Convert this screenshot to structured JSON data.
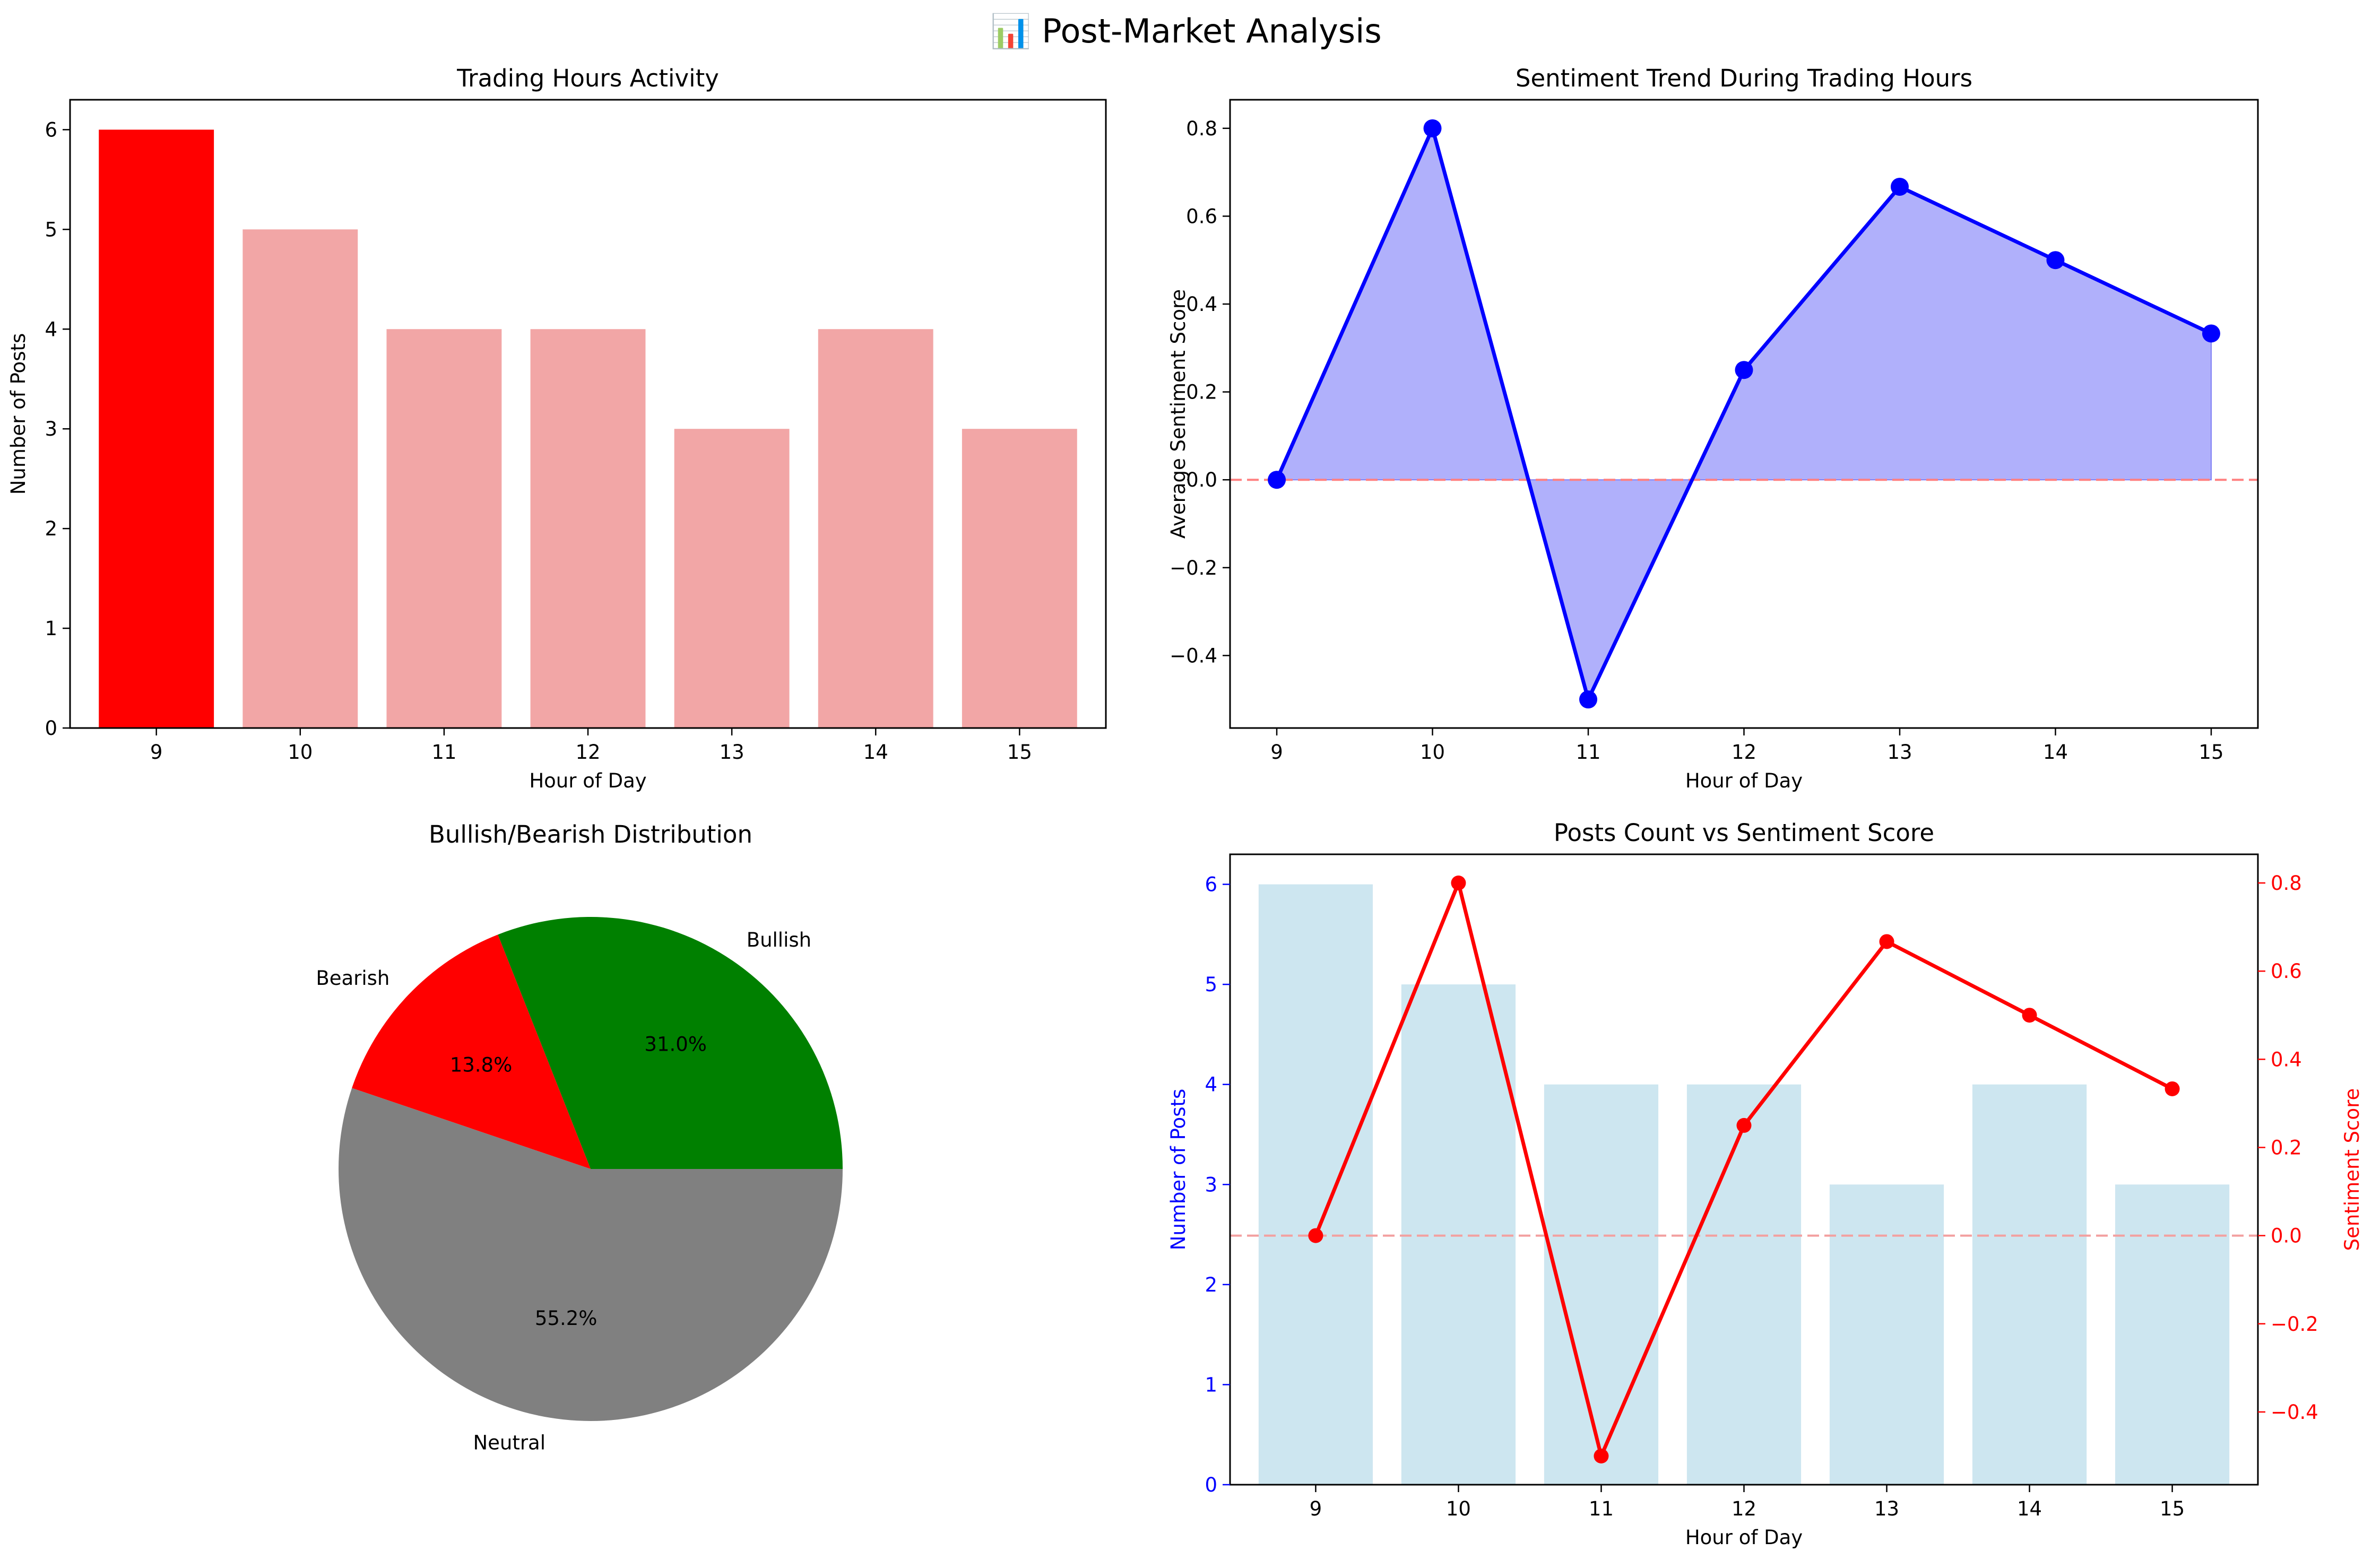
{
  "suptitle": "📊 Post-Market Analysis",
  "chart_data": [
    {
      "type": "bar",
      "title": "Trading Hours Activity",
      "xlabel": "Hour of Day",
      "ylabel": "Number of Posts",
      "categories": [
        "9",
        "10",
        "11",
        "12",
        "13",
        "14",
        "15"
      ],
      "values": [
        6,
        5,
        4,
        4,
        3,
        4,
        3
      ],
      "highlight_color": "#ff0000",
      "bar_color": "#f2a6a6",
      "ylim": [
        0,
        6.3
      ],
      "yticks": [
        0,
        1,
        2,
        3,
        4,
        5,
        6
      ]
    },
    {
      "type": "line",
      "title": "Sentiment Trend During Trading Hours",
      "xlabel": "Hour of Day",
      "ylabel": "Average Sentiment Score",
      "x": [
        9,
        10,
        11,
        12,
        13,
        14,
        15
      ],
      "values": [
        0.0,
        0.8,
        -0.5,
        0.25,
        0.667,
        0.5,
        0.333
      ],
      "line_color": "#0000ff",
      "fill_color": "#b0b0fb",
      "reference_line": 0,
      "reference_color": "#ff8080",
      "ylim": [
        -0.565,
        0.865
      ],
      "yticks": [
        -0.4,
        -0.2,
        0.0,
        0.2,
        0.4,
        0.6,
        0.8
      ],
      "ytick_labels": [
        "−0.4",
        "−0.2",
        "0.0",
        "0.2",
        "0.4",
        "0.6",
        "0.8"
      ]
    },
    {
      "type": "pie",
      "title": "Bullish/Bearish Distribution",
      "labels": [
        "Bullish",
        "Bearish",
        "Neutral"
      ],
      "values": [
        31.0,
        13.8,
        55.2
      ],
      "pct_labels": [
        "31.0%",
        "13.8%",
        "55.2%"
      ],
      "colors": [
        "#008000",
        "#ff0000",
        "#808080"
      ]
    },
    {
      "type": "bar+line",
      "title": "Posts Count vs Sentiment Score",
      "xlabel": "Hour of Day",
      "ylabel_left": "Number of Posts",
      "ylabel_right": "Sentiment Score",
      "categories": [
        "9",
        "10",
        "11",
        "12",
        "13",
        "14",
        "15"
      ],
      "bar_values": [
        6,
        5,
        4,
        4,
        3,
        4,
        3
      ],
      "line_values": [
        0.0,
        0.8,
        -0.5,
        0.25,
        0.667,
        0.5,
        0.333
      ],
      "bar_color": "#cde6f0",
      "line_color": "#ff0000",
      "left_axis_color": "#0000ff",
      "right_axis_color": "#ff0000",
      "reference_line": 0,
      "ylim_left": [
        0,
        6.3
      ],
      "yticks_left": [
        0,
        1,
        2,
        3,
        4,
        5,
        6
      ],
      "ylim_right": [
        -0.565,
        0.865
      ],
      "yticks_right": [
        -0.4,
        -0.2,
        0.0,
        0.2,
        0.4,
        0.6,
        0.8
      ],
      "ytick_labels_right": [
        "−0.4",
        "−0.2",
        "0.0",
        "0.2",
        "0.4",
        "0.6",
        "0.8"
      ]
    }
  ]
}
